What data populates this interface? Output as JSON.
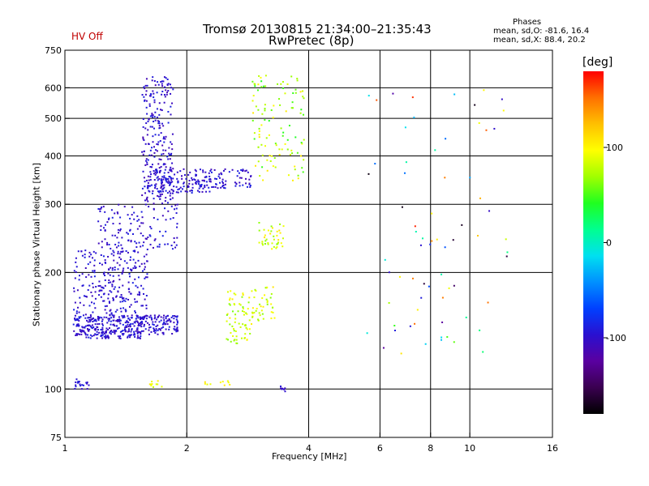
{
  "header": {
    "title_line1": "Tromsø 20130815 21:34:00–21:35:43",
    "title_line2": "RwPretec (8p)",
    "status": "HV Off"
  },
  "phases": {
    "title": "Phases",
    "o_line": "mean, sd,O: -81.6, 16.4",
    "x_line": "mean, sd,X:  88.4, 20.2"
  },
  "colorbar": {
    "unit_label": "[deg]",
    "range": [
      -180,
      180
    ],
    "ticks": [
      {
        "value": 100,
        "label": "100"
      },
      {
        "value": 0,
        "label": "0"
      },
      {
        "value": -100,
        "label": "-100"
      }
    ],
    "colors": [
      "#000000",
      "#3a0050",
      "#5a00a0",
      "#2a10d0",
      "#0040ff",
      "#0090ff",
      "#00e0f0",
      "#00ff90",
      "#20ff20",
      "#a0ff00",
      "#ffff00",
      "#ffc000",
      "#ff7000",
      "#ff0000"
    ]
  },
  "chart_data": {
    "type": "scatter",
    "title": "Tromsø 20130815 21:34:00–21:35:43",
    "subtitle": "RwPretec (8p)",
    "xlabel": "Frequency [MHz]",
    "ylabel": "Stationary phase Virtual Height [km]",
    "x_scale": "log",
    "y_scale": "log",
    "xlim": [
      1,
      16
    ],
    "ylim": [
      75,
      750
    ],
    "x_ticks": [
      {
        "v": 1,
        "label": "1"
      },
      {
        "v": 2,
        "label": "2"
      },
      {
        "v": 4,
        "label": "4"
      },
      {
        "v": 6,
        "label": "6"
      },
      {
        "v": 8,
        "label": "8"
      },
      {
        "v": 10,
        "label": "10"
      },
      {
        "v": 16,
        "label": "16"
      }
    ],
    "y_ticks": [
      {
        "v": 75,
        "label": "75"
      },
      {
        "v": 100,
        "label": "100"
      },
      {
        "v": 200,
        "label": "200"
      },
      {
        "v": 300,
        "label": "300"
      },
      {
        "v": 400,
        "label": "400"
      },
      {
        "v": 500,
        "label": "500"
      },
      {
        "v": 600,
        "label": "600"
      },
      {
        "v": 750,
        "label": "750"
      }
    ],
    "gridlines_x": [
      2,
      4,
      6,
      8,
      10
    ],
    "gridlines_y": [
      100,
      200,
      300,
      400,
      500,
      600
    ],
    "color_variable": "phase [deg]",
    "clusters": [
      {
        "x": [
          1.05,
          1.55
        ],
        "y": [
          135,
          155
        ],
        "phase": [
          -110,
          -85
        ],
        "count": 280
      },
      {
        "x": [
          1.05,
          1.6
        ],
        "y": [
          155,
          230
        ],
        "phase": [
          -110,
          -85
        ],
        "count": 250
      },
      {
        "x": [
          1.2,
          1.9
        ],
        "y": [
          230,
          300
        ],
        "phase": [
          -110,
          -85
        ],
        "count": 130
      },
      {
        "x": [
          1.5,
          1.9
        ],
        "y": [
          138,
          155
        ],
        "phase": [
          -110,
          -85
        ],
        "count": 130
      },
      {
        "x": [
          1.55,
          1.85
        ],
        "y": [
          300,
          640
        ],
        "phase": [
          -115,
          -85
        ],
        "count": 240
      },
      {
        "x": [
          1.6,
          2.3
        ],
        "y": [
          320,
          370
        ],
        "phase": [
          -110,
          -85
        ],
        "count": 160
      },
      {
        "x": [
          2.3,
          2.9
        ],
        "y": [
          330,
          370
        ],
        "phase": [
          -110,
          -85
        ],
        "count": 60
      },
      {
        "x": [
          2.9,
          3.9
        ],
        "y": [
          340,
          650
        ],
        "phase": [
          40,
          110
        ],
        "count": 110
      },
      {
        "x": [
          2.5,
          2.9
        ],
        "y": [
          130,
          180
        ],
        "phase": [
          60,
          110
        ],
        "count": 70
      },
      {
        "x": [
          2.9,
          3.3
        ],
        "y": [
          150,
          185
        ],
        "phase": [
          60,
          110
        ],
        "count": 40
      },
      {
        "x": [
          3.0,
          3.5
        ],
        "y": [
          230,
          270
        ],
        "phase": [
          60,
          110
        ],
        "count": 40
      },
      {
        "x": [
          1.05,
          1.15
        ],
        "y": [
          100,
          106
        ],
        "phase": [
          -105,
          -85
        ],
        "count": 20
      },
      {
        "x": [
          1.6,
          1.75
        ],
        "y": [
          101,
          106
        ],
        "phase": [
          80,
          110
        ],
        "count": 10
      },
      {
        "x": [
          2.2,
          2.6
        ],
        "y": [
          101,
          105
        ],
        "phase": [
          80,
          110
        ],
        "count": 10
      },
      {
        "x": [
          3.4,
          3.5
        ],
        "y": [
          98,
          102
        ],
        "phase": [
          -105,
          -95
        ],
        "count": 8
      },
      {
        "x": [
          5.5,
          12.5
        ],
        "y": [
          120,
          600
        ],
        "phase": [
          -180,
          180
        ],
        "count": 70
      }
    ]
  }
}
